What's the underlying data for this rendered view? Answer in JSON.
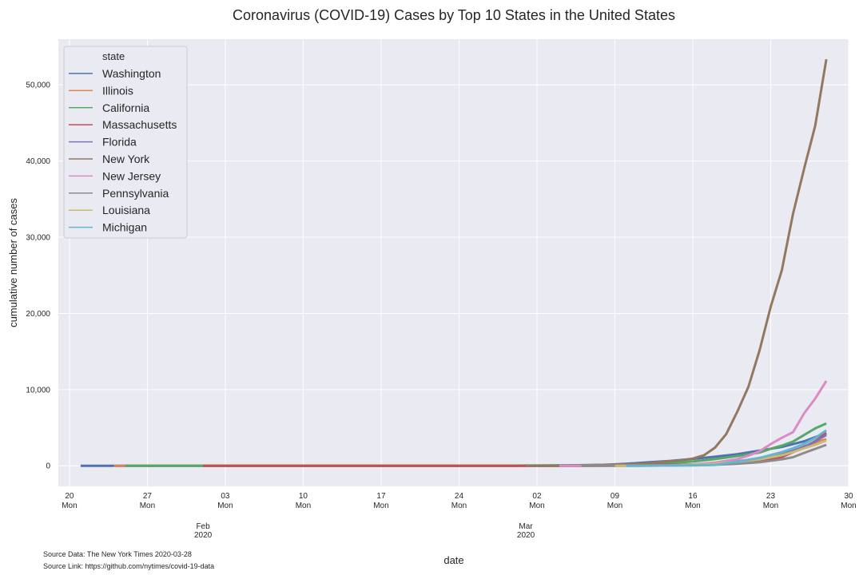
{
  "chart_data": {
    "type": "line",
    "title": "Coronavirus (COVID-19) Cases by Top 10 States in the United States",
    "xlabel": "date",
    "ylabel": "cumulative number of cases",
    "x_range": [
      "2020-01-19",
      "2020-03-30"
    ],
    "ylim": [
      -2700,
      56000
    ],
    "y_ticks": [
      0,
      10000,
      20000,
      30000,
      40000,
      50000
    ],
    "y_tick_labels": [
      "0",
      "10,000",
      "20,000",
      "30,000",
      "40,000",
      "50,000"
    ],
    "x_ticks": [
      {
        "date": "2020-01-20",
        "day": "20",
        "weekday": "Mon"
      },
      {
        "date": "2020-01-27",
        "day": "27",
        "weekday": "Mon"
      },
      {
        "date": "2020-02-03",
        "day": "03",
        "weekday": "Mon"
      },
      {
        "date": "2020-02-10",
        "day": "10",
        "weekday": "Mon"
      },
      {
        "date": "2020-02-17",
        "day": "17",
        "weekday": "Mon"
      },
      {
        "date": "2020-02-24",
        "day": "24",
        "weekday": "Mon"
      },
      {
        "date": "2020-03-02",
        "day": "02",
        "weekday": "Mon"
      },
      {
        "date": "2020-03-09",
        "day": "09",
        "weekday": "Mon"
      },
      {
        "date": "2020-03-16",
        "day": "16",
        "weekday": "Mon"
      },
      {
        "date": "2020-03-23",
        "day": "23",
        "weekday": "Mon"
      },
      {
        "date": "2020-03-30",
        "day": "30",
        "weekday": "Mon"
      }
    ],
    "month_ticks": [
      {
        "date": "2020-02-01",
        "month": "Feb",
        "year": "2020"
      },
      {
        "date": "2020-03-01",
        "month": "Mar",
        "year": "2020"
      }
    ],
    "grid": true,
    "legend": {
      "title": "state",
      "position": "top-left"
    },
    "series": [
      {
        "name": "Washington",
        "color": "#4c72b0",
        "start": "2020-01-21",
        "points": [
          [
            "2020-03-01",
            11
          ],
          [
            "2020-03-05",
            70
          ],
          [
            "2020-03-08",
            130
          ],
          [
            "2020-03-10",
            267
          ],
          [
            "2020-03-12",
            457
          ],
          [
            "2020-03-14",
            643
          ],
          [
            "2020-03-16",
            904
          ],
          [
            "2020-03-18",
            1187
          ],
          [
            "2020-03-20",
            1524
          ],
          [
            "2020-03-22",
            1996
          ],
          [
            "2020-03-24",
            2469
          ],
          [
            "2020-03-26",
            3207
          ],
          [
            "2020-03-28",
            4310
          ]
        ]
      },
      {
        "name": "Illinois",
        "color": "#dd8452",
        "start": "2020-01-24",
        "points": [
          [
            "2020-03-08",
            7
          ],
          [
            "2020-03-12",
            32
          ],
          [
            "2020-03-15",
            93
          ],
          [
            "2020-03-17",
            160
          ],
          [
            "2020-03-19",
            422
          ],
          [
            "2020-03-21",
            753
          ],
          [
            "2020-03-23",
            1285
          ],
          [
            "2020-03-25",
            1865
          ],
          [
            "2020-03-26",
            2538
          ],
          [
            "2020-03-27",
            3024
          ],
          [
            "2020-03-28",
            3491
          ]
        ]
      },
      {
        "name": "California",
        "color": "#55a868",
        "start": "2020-01-25",
        "points": [
          [
            "2020-03-01",
            40
          ],
          [
            "2020-03-05",
            53
          ],
          [
            "2020-03-08",
            114
          ],
          [
            "2020-03-10",
            157
          ],
          [
            "2020-03-12",
            252
          ],
          [
            "2020-03-14",
            372
          ],
          [
            "2020-03-16",
            557
          ],
          [
            "2020-03-18",
            874
          ],
          [
            "2020-03-20",
            1283
          ],
          [
            "2020-03-22",
            1733
          ],
          [
            "2020-03-23",
            2238
          ],
          [
            "2020-03-24",
            2644
          ],
          [
            "2020-03-25",
            3183
          ],
          [
            "2020-03-26",
            4040
          ],
          [
            "2020-03-27",
            4914
          ],
          [
            "2020-03-28",
            5550
          ]
        ]
      },
      {
        "name": "Massachusetts",
        "color": "#c44e52",
        "start": "2020-02-01",
        "points": [
          [
            "2020-03-06",
            8
          ],
          [
            "2020-03-10",
            92
          ],
          [
            "2020-03-14",
            138
          ],
          [
            "2020-03-17",
            218
          ],
          [
            "2020-03-20",
            413
          ],
          [
            "2020-03-22",
            646
          ],
          [
            "2020-03-24",
            1159
          ],
          [
            "2020-03-26",
            2417
          ],
          [
            "2020-03-27",
            3240
          ],
          [
            "2020-03-28",
            4257
          ]
        ]
      },
      {
        "name": "Florida",
        "color": "#8172b3",
        "start": "2020-03-01",
        "points": [
          [
            "2020-03-08",
            17
          ],
          [
            "2020-03-12",
            44
          ],
          [
            "2020-03-15",
            116
          ],
          [
            "2020-03-17",
            216
          ],
          [
            "2020-03-19",
            432
          ],
          [
            "2020-03-21",
            763
          ],
          [
            "2020-03-23",
            1227
          ],
          [
            "2020-03-25",
            1977
          ],
          [
            "2020-03-26",
            2484
          ],
          [
            "2020-03-27",
            3198
          ],
          [
            "2020-03-28",
            4038
          ]
        ]
      },
      {
        "name": "New York",
        "color": "#937860",
        "start": "2020-03-01",
        "points": [
          [
            "2020-03-05",
            22
          ],
          [
            "2020-03-08",
            105
          ],
          [
            "2020-03-10",
            173
          ],
          [
            "2020-03-12",
            328
          ],
          [
            "2020-03-14",
            613
          ],
          [
            "2020-03-15",
            732
          ],
          [
            "2020-03-16",
            950
          ],
          [
            "2020-03-17",
            1374
          ],
          [
            "2020-03-18",
            2382
          ],
          [
            "2020-03-19",
            4152
          ],
          [
            "2020-03-20",
            7102
          ],
          [
            "2020-03-21",
            10356
          ],
          [
            "2020-03-22",
            15168
          ],
          [
            "2020-03-23",
            20875
          ],
          [
            "2020-03-24",
            25665
          ],
          [
            "2020-03-25",
            33066
          ],
          [
            "2020-03-26",
            38987
          ],
          [
            "2020-03-27",
            44635
          ],
          [
            "2020-03-28",
            53363
          ]
        ]
      },
      {
        "name": "New Jersey",
        "color": "#da8bc3",
        "start": "2020-03-04",
        "points": [
          [
            "2020-03-08",
            6
          ],
          [
            "2020-03-10",
            15
          ],
          [
            "2020-03-12",
            29
          ],
          [
            "2020-03-14",
            69
          ],
          [
            "2020-03-16",
            178
          ],
          [
            "2020-03-18",
            427
          ],
          [
            "2020-03-20",
            890
          ],
          [
            "2020-03-21",
            1327
          ],
          [
            "2020-03-22",
            1914
          ],
          [
            "2020-03-23",
            2844
          ],
          [
            "2020-03-24",
            3675
          ],
          [
            "2020-03-25",
            4402
          ],
          [
            "2020-03-26",
            6876
          ],
          [
            "2020-03-27",
            8825
          ],
          [
            "2020-03-28",
            11124
          ]
        ]
      },
      {
        "name": "Pennsylvania",
        "color": "#8c8c8c",
        "start": "2020-03-06",
        "points": [
          [
            "2020-03-10",
            12
          ],
          [
            "2020-03-14",
            47
          ],
          [
            "2020-03-16",
            76
          ],
          [
            "2020-03-18",
            133
          ],
          [
            "2020-03-20",
            268
          ],
          [
            "2020-03-22",
            479
          ],
          [
            "2020-03-24",
            851
          ],
          [
            "2020-03-25",
            1127
          ],
          [
            "2020-03-26",
            1687
          ],
          [
            "2020-03-27",
            2218
          ],
          [
            "2020-03-28",
            2751
          ]
        ]
      },
      {
        "name": "Louisiana",
        "color": "#ccb974",
        "start": "2020-03-09",
        "points": [
          [
            "2020-03-12",
            19
          ],
          [
            "2020-03-14",
            36
          ],
          [
            "2020-03-16",
            136
          ],
          [
            "2020-03-18",
            280
          ],
          [
            "2020-03-20",
            537
          ],
          [
            "2020-03-22",
            837
          ],
          [
            "2020-03-24",
            1388
          ],
          [
            "2020-03-25",
            1795
          ],
          [
            "2020-03-26",
            2305
          ],
          [
            "2020-03-27",
            2746
          ],
          [
            "2020-03-28",
            3315
          ]
        ]
      },
      {
        "name": "Michigan",
        "color": "#64b5cd",
        "start": "2020-03-10",
        "points": [
          [
            "2020-03-12",
            12
          ],
          [
            "2020-03-14",
            33
          ],
          [
            "2020-03-16",
            54
          ],
          [
            "2020-03-18",
            110
          ],
          [
            "2020-03-20",
            549
          ],
          [
            "2020-03-22",
            1035
          ],
          [
            "2020-03-24",
            1791
          ],
          [
            "2020-03-25",
            2295
          ],
          [
            "2020-03-26",
            2877
          ],
          [
            "2020-03-27",
            3657
          ],
          [
            "2020-03-28",
            4650
          ]
        ]
      }
    ],
    "annotations": [
      "Source Data: The New York Times 2020-03-28",
      "Source Link: https://github.com/nytimes/covid-19-data"
    ]
  }
}
